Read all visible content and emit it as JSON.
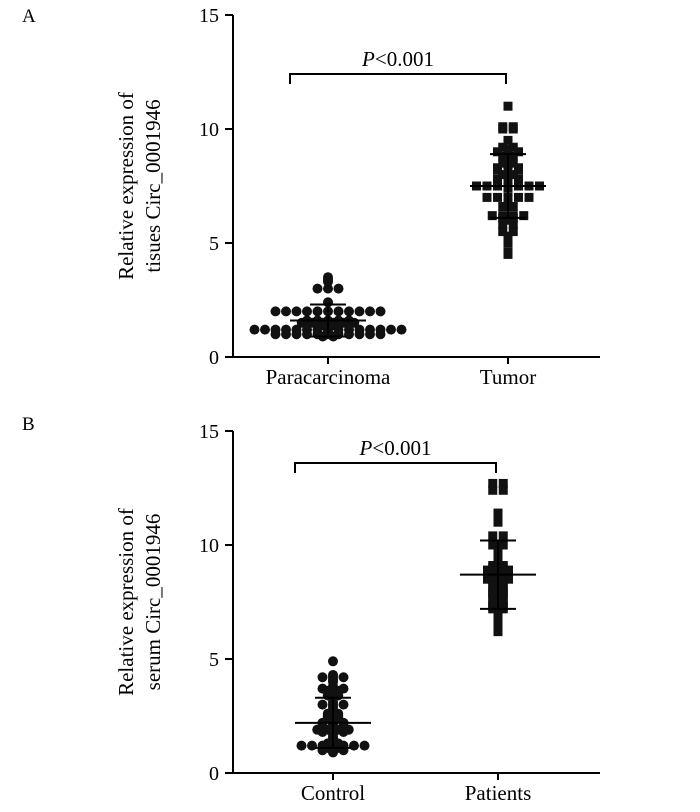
{
  "chart_data": [
    {
      "type": "scatter",
      "panel_label": "A",
      "categories": [
        "Paracarcinoma",
        "Tumor"
      ],
      "ylabel_lines": [
        "Relative expression of",
        "tisues Circ_0001946"
      ],
      "ylim": [
        0,
        15
      ],
      "yticks": [
        0,
        5,
        10,
        15
      ],
      "annotation": {
        "italic": "P",
        "rest": "<0.001"
      },
      "series": [
        {
          "category": "Paracarcinoma",
          "marker": "circle",
          "mean": 1.6,
          "sd": 0.7,
          "values": [
            3.5,
            3.3,
            3.0,
            3.0,
            3.0,
            3.4,
            2.4,
            2.0,
            2.0,
            2.0,
            2.0,
            2.0,
            2.0,
            2.0,
            2.0,
            2.0,
            2.0,
            2.0,
            1.6,
            1.5,
            1.5,
            1.5,
            1.6,
            1.6,
            1.4,
            1.4,
            1.6,
            1.5,
            1.5,
            1.5,
            1.6,
            1.2,
            1.2,
            1.2,
            1.2,
            1.2,
            1.2,
            1.2,
            1.2,
            1.2,
            1.2,
            1.2,
            1.2,
            1.2,
            1.2,
            1.2,
            1.1,
            1.0,
            1.0,
            1.0,
            1.0,
            1.0,
            1.0,
            1.0,
            1.0,
            1.0,
            1.0,
            1.0,
            0.9,
            0.9
          ]
        },
        {
          "category": "Tumor",
          "marker": "square",
          "mean": 7.5,
          "sd": 1.4,
          "values": [
            11.0,
            10.1,
            10.0,
            10.0,
            10.1,
            9.5,
            9.2,
            9.2,
            9.1,
            9.0,
            9.0,
            9.0,
            8.8,
            8.8,
            8.5,
            8.5,
            8.3,
            8.3,
            8.2,
            8.2,
            8.2,
            8.3,
            8.0,
            8.0,
            7.9,
            7.8,
            7.8,
            7.8,
            7.5,
            7.5,
            7.5,
            7.5,
            7.5,
            7.5,
            7.5,
            7.4,
            7.0,
            7.0,
            7.0,
            7.0,
            7.0,
            6.8,
            6.6,
            6.6,
            6.2,
            6.2,
            6.2,
            6.2,
            6.1,
            6.1,
            6.0,
            5.8,
            5.8,
            5.5,
            5.5,
            5.3,
            5.2,
            5.0,
            4.6,
            4.5
          ]
        }
      ]
    },
    {
      "type": "scatter",
      "panel_label": "B",
      "categories": [
        "Control",
        "Patients"
      ],
      "ylabel_lines": [
        "Relative expression of",
        "serum Circ_0001946"
      ],
      "ylim": [
        0,
        15
      ],
      "yticks": [
        0,
        5,
        10,
        15
      ],
      "annotation": {
        "italic": "P",
        "rest": "<0.001"
      },
      "series": [
        {
          "category": "Control",
          "marker": "circle",
          "mean": 2.2,
          "sd": 1.1,
          "values": [
            4.9,
            4.3,
            4.2,
            4.2,
            4.2,
            4.1,
            4.0,
            3.8,
            3.7,
            3.7,
            3.7,
            3.6,
            3.6,
            3.5,
            3.4,
            3.4,
            3.1,
            3.0,
            3.0,
            3.0,
            2.9,
            2.8,
            2.6,
            2.6,
            2.5,
            2.5,
            2.4,
            2.4,
            2.3,
            2.2,
            2.2,
            2.2,
            2.1,
            2.0,
            1.9,
            1.9,
            1.9,
            1.9,
            1.8,
            1.8,
            1.8,
            1.7,
            1.6,
            1.5,
            1.4,
            1.3,
            1.3,
            1.2,
            1.2,
            1.2,
            1.2,
            1.2,
            1.2,
            1.2,
            1.1,
            1.1,
            1.0,
            1.0,
            1.0,
            0.9
          ]
        },
        {
          "category": "Patients",
          "marker": "square",
          "mean": 8.7,
          "sd": 1.5,
          "values": [
            12.7,
            12.7,
            12.4,
            12.4,
            11.4,
            11.2,
            11.0,
            10.4,
            10.4,
            10.0,
            10.0,
            9.8,
            9.6,
            9.5,
            9.3,
            9.2,
            9.1,
            9.1,
            9.0,
            9.0,
            8.9,
            8.9,
            8.9,
            8.8,
            8.8,
            8.7,
            8.6,
            8.6,
            8.5,
            8.5,
            8.5,
            8.4,
            8.4,
            8.3,
            8.2,
            8.2,
            8.1,
            8.0,
            8.0,
            7.9,
            7.9,
            7.8,
            7.8,
            7.6,
            7.6,
            7.5,
            7.4,
            7.4,
            7.3,
            7.3,
            7.2,
            7.2,
            7.1,
            7.0,
            6.9,
            6.8,
            6.6,
            6.5,
            6.3,
            6.2
          ]
        }
      ]
    }
  ]
}
